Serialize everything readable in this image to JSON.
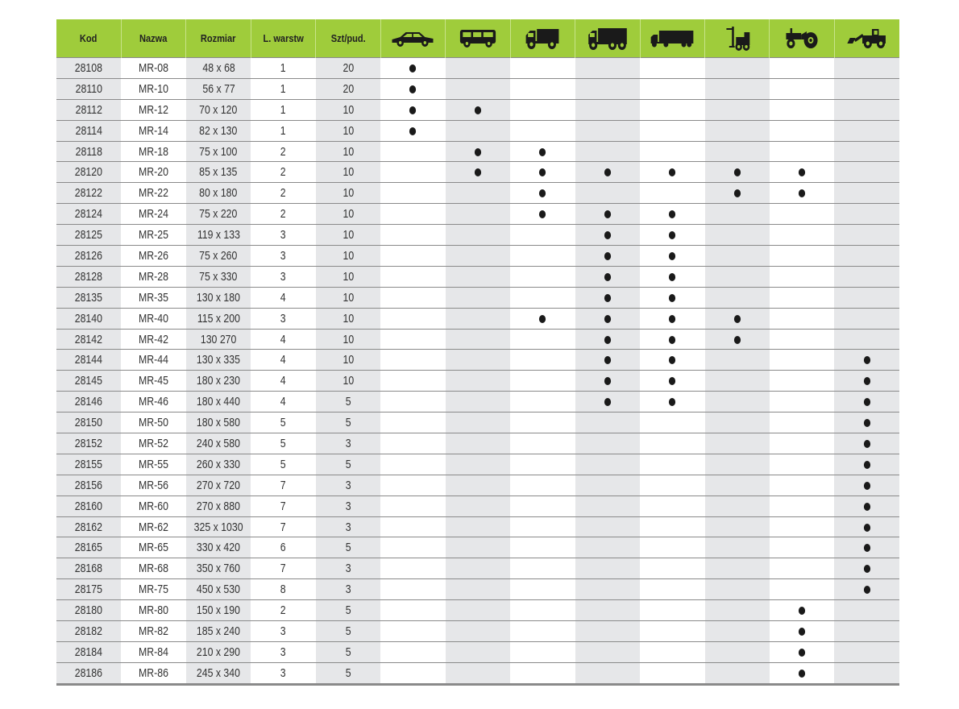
{
  "headers": [
    "Kod",
    "Nazwa",
    "Rozmiar",
    "L. warstw",
    "Szt/pud."
  ],
  "vehicle_columns": [
    "car-icon",
    "bus-icon",
    "truck-icon",
    "heavy-truck-icon",
    "semi-trailer-icon",
    "forklift-icon",
    "tractor-icon",
    "wheel-loader-icon"
  ],
  "colors": {
    "header": "#9fcc3b",
    "shaded_column": "#e6e7e9",
    "dot": "#1a1a1a"
  },
  "rows": [
    [
      "28108",
      "MR-08",
      "48 x 68",
      "1",
      "20",
      [
        0
      ]
    ],
    [
      "28110",
      "MR-10",
      "56 x 77",
      "1",
      "20",
      [
        0
      ]
    ],
    [
      "28112",
      "MR-12",
      "70 x 120",
      "1",
      "10",
      [
        0,
        1
      ]
    ],
    [
      "28114",
      "MR-14",
      "82 x 130",
      "1",
      "10",
      [
        0
      ]
    ],
    [
      "28118",
      "MR-18",
      "75 x 100",
      "2",
      "10",
      [
        1,
        2
      ]
    ],
    [
      "28120",
      "MR-20",
      "85 x 135",
      "2",
      "10",
      [
        1,
        2,
        3,
        4,
        5,
        6
      ]
    ],
    [
      "28122",
      "MR-22",
      "80 x 180",
      "2",
      "10",
      [
        2,
        5,
        6
      ]
    ],
    [
      "28124",
      "MR-24",
      "75 x 220",
      "2",
      "10",
      [
        2,
        3,
        4
      ]
    ],
    [
      "28125",
      "MR-25",
      "119 x 133",
      "3",
      "10",
      [
        3,
        4
      ]
    ],
    [
      "28126",
      "MR-26",
      "75 x 260",
      "3",
      "10",
      [
        3,
        4
      ]
    ],
    [
      "28128",
      "MR-28",
      "75 x 330",
      "3",
      "10",
      [
        3,
        4
      ]
    ],
    [
      "28135",
      "MR-35",
      "130 x 180",
      "4",
      "10",
      [
        3,
        4
      ]
    ],
    [
      "28140",
      "MR-40",
      "115 x 200",
      "3",
      "10",
      [
        2,
        3,
        4,
        5
      ]
    ],
    [
      "28142",
      "MR-42",
      "130 270",
      "4",
      "10",
      [
        3,
        4,
        5
      ]
    ],
    [
      "28144",
      "MR-44",
      "130 x 335",
      "4",
      "10",
      [
        3,
        4,
        7
      ]
    ],
    [
      "28145",
      "MR-45",
      "180 x 230",
      "4",
      "10",
      [
        3,
        4,
        7
      ]
    ],
    [
      "28146",
      "MR-46",
      "180 x 440",
      "4",
      "5",
      [
        3,
        4,
        7
      ]
    ],
    [
      "28150",
      "MR-50",
      "180 x 580",
      "5",
      "5",
      [
        7
      ]
    ],
    [
      "28152",
      "MR-52",
      "240 x 580",
      "5",
      "3",
      [
        7
      ]
    ],
    [
      "28155",
      "MR-55",
      "260 x 330",
      "5",
      "5",
      [
        7
      ]
    ],
    [
      "28156",
      "MR-56",
      "270 x 720",
      "7",
      "3",
      [
        7
      ]
    ],
    [
      "28160",
      "MR-60",
      "270 x 880",
      "7",
      "3",
      [
        7
      ]
    ],
    [
      "28162",
      "MR-62",
      "325 x 1030",
      "7",
      "3",
      [
        7
      ]
    ],
    [
      "28165",
      "MR-65",
      "330 x 420",
      "6",
      "5",
      [
        7
      ]
    ],
    [
      "28168",
      "MR-68",
      "350 x 760",
      "7",
      "3",
      [
        7
      ]
    ],
    [
      "28175",
      "MR-75",
      "450 x 530",
      "8",
      "3",
      [
        7
      ]
    ],
    [
      "28180",
      "MR-80",
      "150 x 190",
      "2",
      "5",
      [
        6
      ]
    ],
    [
      "28182",
      "MR-82",
      "185 x 240",
      "3",
      "5",
      [
        6
      ]
    ],
    [
      "28184",
      "MR-84",
      "210 x 290",
      "3",
      "5",
      [
        6
      ]
    ],
    [
      "28186",
      "MR-86",
      "245 x 340",
      "3",
      "5",
      [
        6
      ]
    ]
  ]
}
